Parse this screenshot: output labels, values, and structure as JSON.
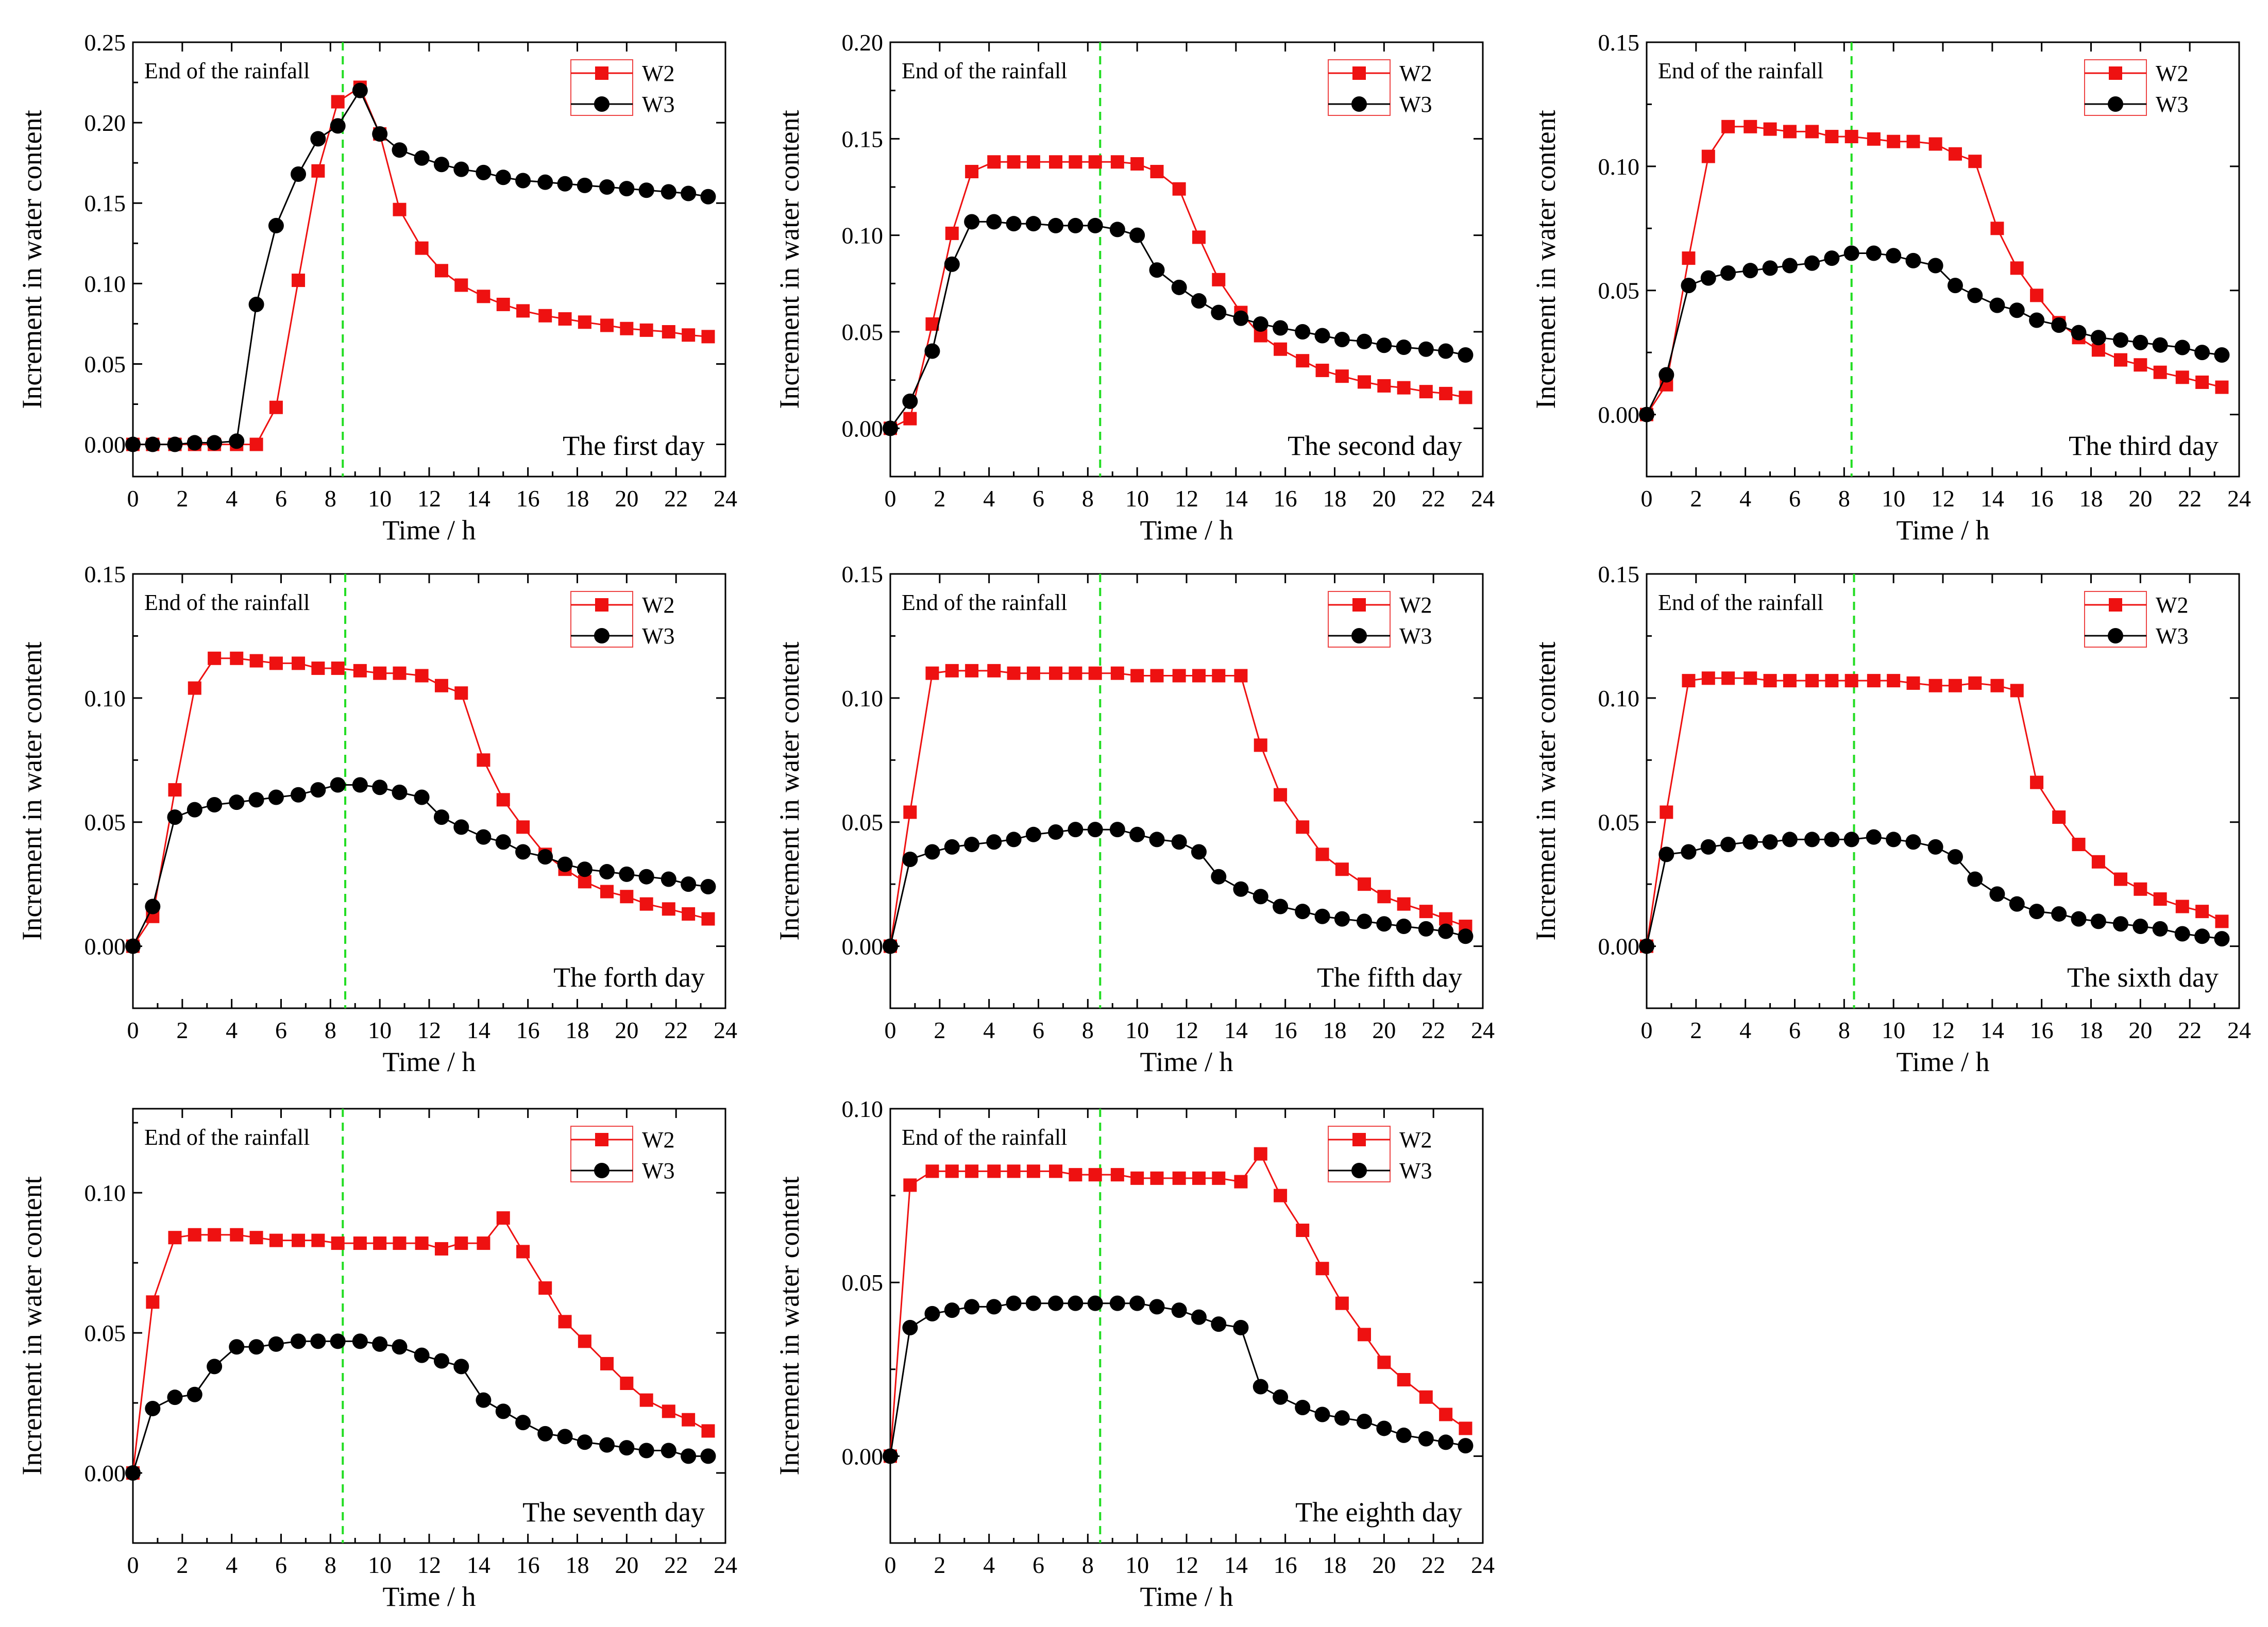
{
  "colors": {
    "W2": "#ee1111",
    "W3": "#000000",
    "rainfall_line": "#22dd22"
  },
  "chart_data": [
    {
      "type": "line",
      "panel_label": "The first day",
      "annotation": "End of the rainfall",
      "rainfall_end_x": 8.5,
      "xlabel": "Time / h",
      "ylabel": "Increment in water content",
      "xlim": [
        0,
        24
      ],
      "ylim": [
        -0.02,
        0.25
      ],
      "xticks": [
        "0",
        "2",
        "4",
        "6",
        "8",
        "10",
        "12",
        "14",
        "16",
        "18",
        "20",
        "22",
        "24"
      ],
      "yticks": [
        "0.00",
        "0.05",
        "0.10",
        "0.15",
        "0.20",
        "0.25"
      ],
      "legend": "top-right",
      "x": [
        0,
        0.8,
        1.7,
        2.5,
        3.3,
        4.2,
        5.0,
        5.8,
        6.7,
        7.5,
        8.3,
        9.2,
        10.0,
        10.8,
        11.7,
        12.5,
        13.3,
        14.2,
        15.0,
        15.8,
        16.7,
        17.5,
        18.3,
        19.2,
        20.0,
        20.8,
        21.7,
        22.5,
        23.3
      ],
      "series": [
        {
          "name": "W2",
          "values": [
            0.0,
            0.0,
            0.0,
            0.0,
            0.0,
            0.0,
            0.0,
            0.023,
            0.102,
            0.17,
            0.213,
            0.222,
            0.193,
            0.146,
            0.122,
            0.108,
            0.099,
            0.092,
            0.087,
            0.083,
            0.08,
            0.078,
            0.076,
            0.074,
            0.072,
            0.071,
            0.07,
            0.068,
            0.067
          ]
        },
        {
          "name": "W3",
          "values": [
            0.0,
            0.0,
            0.0,
            0.001,
            0.001,
            0.002,
            0.087,
            0.136,
            0.168,
            0.19,
            0.198,
            0.22,
            0.193,
            0.183,
            0.178,
            0.174,
            0.171,
            0.169,
            0.166,
            0.164,
            0.163,
            0.162,
            0.161,
            0.16,
            0.159,
            0.158,
            0.157,
            0.156,
            0.154
          ]
        }
      ]
    },
    {
      "type": "line",
      "panel_label": "The second day",
      "annotation": "End of the rainfall",
      "rainfall_end_x": 8.5,
      "xlabel": "Time / h",
      "ylabel": "Increment in water content",
      "xlim": [
        0,
        24
      ],
      "ylim": [
        -0.025,
        0.2
      ],
      "xticks": [
        "0",
        "2",
        "4",
        "6",
        "8",
        "10",
        "12",
        "14",
        "16",
        "18",
        "20",
        "22",
        "24"
      ],
      "yticks": [
        "0.00",
        "0.05",
        "0.10",
        "0.15",
        "0.20"
      ],
      "legend": "top-right",
      "x": [
        0,
        0.8,
        1.7,
        2.5,
        3.3,
        4.2,
        5.0,
        5.8,
        6.7,
        7.5,
        8.3,
        9.2,
        10.0,
        10.8,
        11.7,
        12.5,
        13.3,
        14.2,
        15.0,
        15.8,
        16.7,
        17.5,
        18.3,
        19.2,
        20.0,
        20.8,
        21.7,
        22.5,
        23.3
      ],
      "series": [
        {
          "name": "W2",
          "values": [
            0.0,
            0.005,
            0.054,
            0.101,
            0.133,
            0.138,
            0.138,
            0.138,
            0.138,
            0.138,
            0.138,
            0.138,
            0.137,
            0.133,
            0.124,
            0.099,
            0.077,
            0.06,
            0.048,
            0.041,
            0.035,
            0.03,
            0.027,
            0.024,
            0.022,
            0.021,
            0.019,
            0.018,
            0.016
          ]
        },
        {
          "name": "W3",
          "values": [
            0.0,
            0.014,
            0.04,
            0.085,
            0.107,
            0.107,
            0.106,
            0.106,
            0.105,
            0.105,
            0.105,
            0.103,
            0.1,
            0.082,
            0.073,
            0.066,
            0.06,
            0.057,
            0.054,
            0.052,
            0.05,
            0.048,
            0.046,
            0.045,
            0.043,
            0.042,
            0.041,
            0.04,
            0.038
          ]
        }
      ]
    },
    {
      "type": "line",
      "panel_label": "The third day",
      "annotation": "End of the rainfall",
      "rainfall_end_x": 8.3,
      "xlabel": "Time / h",
      "ylabel": "Increment in water content",
      "xlim": [
        0,
        24
      ],
      "ylim": [
        -0.025,
        0.15
      ],
      "xticks": [
        "0",
        "2",
        "4",
        "6",
        "8",
        "10",
        "12",
        "14",
        "16",
        "18",
        "20",
        "22",
        "24"
      ],
      "yticks": [
        "0.00",
        "0.05",
        "0.10",
        "0.15"
      ],
      "legend": "top-right",
      "x": [
        0,
        0.8,
        1.7,
        2.5,
        3.3,
        4.2,
        5.0,
        5.8,
        6.7,
        7.5,
        8.3,
        9.2,
        10.0,
        10.8,
        11.7,
        12.5,
        13.3,
        14.2,
        15.0,
        15.8,
        16.7,
        17.5,
        18.3,
        19.2,
        20.0,
        20.8,
        21.7,
        22.5,
        23.3
      ],
      "series": [
        {
          "name": "W2",
          "values": [
            0.0,
            0.012,
            0.063,
            0.104,
            0.116,
            0.116,
            0.115,
            0.114,
            0.114,
            0.112,
            0.112,
            0.111,
            0.11,
            0.11,
            0.109,
            0.105,
            0.102,
            0.075,
            0.059,
            0.048,
            0.037,
            0.031,
            0.026,
            0.022,
            0.02,
            0.017,
            0.015,
            0.013,
            0.011
          ]
        },
        {
          "name": "W3",
          "values": [
            0.0,
            0.016,
            0.052,
            0.055,
            0.057,
            0.058,
            0.059,
            0.06,
            0.061,
            0.063,
            0.065,
            0.065,
            0.064,
            0.062,
            0.06,
            0.052,
            0.048,
            0.044,
            0.042,
            0.038,
            0.036,
            0.033,
            0.031,
            0.03,
            0.029,
            0.028,
            0.027,
            0.025,
            0.024
          ]
        }
      ]
    },
    {
      "type": "line",
      "panel_label": "The forth day",
      "annotation": "End of the rainfall",
      "rainfall_end_x": 8.6,
      "xlabel": "Time / h",
      "ylabel": "Increment in water content",
      "xlim": [
        0,
        24
      ],
      "ylim": [
        -0.025,
        0.15
      ],
      "xticks": [
        "0",
        "2",
        "4",
        "6",
        "8",
        "10",
        "12",
        "14",
        "16",
        "18",
        "20",
        "22",
        "24"
      ],
      "yticks": [
        "0.00",
        "0.05",
        "0.10",
        "0.15"
      ],
      "legend": "top-right",
      "x": [
        0,
        0.8,
        1.7,
        2.5,
        3.3,
        4.2,
        5.0,
        5.8,
        6.7,
        7.5,
        8.3,
        9.2,
        10.0,
        10.8,
        11.7,
        12.5,
        13.3,
        14.2,
        15.0,
        15.8,
        16.7,
        17.5,
        18.3,
        19.2,
        20.0,
        20.8,
        21.7,
        22.5,
        23.3
      ],
      "series": [
        {
          "name": "W2",
          "values": [
            0.0,
            0.012,
            0.063,
            0.104,
            0.116,
            0.116,
            0.115,
            0.114,
            0.114,
            0.112,
            0.112,
            0.111,
            0.11,
            0.11,
            0.109,
            0.105,
            0.102,
            0.075,
            0.059,
            0.048,
            0.037,
            0.031,
            0.026,
            0.022,
            0.02,
            0.017,
            0.015,
            0.013,
            0.011
          ]
        },
        {
          "name": "W3",
          "values": [
            0.0,
            0.016,
            0.052,
            0.055,
            0.057,
            0.058,
            0.059,
            0.06,
            0.061,
            0.063,
            0.065,
            0.065,
            0.064,
            0.062,
            0.06,
            0.052,
            0.048,
            0.044,
            0.042,
            0.038,
            0.036,
            0.033,
            0.031,
            0.03,
            0.029,
            0.028,
            0.027,
            0.025,
            0.024
          ]
        }
      ]
    },
    {
      "type": "line",
      "panel_label": "The fifth day",
      "annotation": "End of the rainfall",
      "rainfall_end_x": 8.5,
      "xlabel": "Time / h",
      "ylabel": "Increment in water content",
      "xlim": [
        0,
        24
      ],
      "ylim": [
        -0.025,
        0.15
      ],
      "xticks": [
        "0",
        "2",
        "4",
        "6",
        "8",
        "10",
        "12",
        "14",
        "16",
        "18",
        "20",
        "22",
        "24"
      ],
      "yticks": [
        "0.00",
        "0.05",
        "0.10",
        "0.15"
      ],
      "legend": "top-right",
      "x": [
        0,
        0.8,
        1.7,
        2.5,
        3.3,
        4.2,
        5.0,
        5.8,
        6.7,
        7.5,
        8.3,
        9.2,
        10.0,
        10.8,
        11.7,
        12.5,
        13.3,
        14.2,
        15.0,
        15.8,
        16.7,
        17.5,
        18.3,
        19.2,
        20.0,
        20.8,
        21.7,
        22.5,
        23.3
      ],
      "series": [
        {
          "name": "W2",
          "values": [
            0.0,
            0.054,
            0.11,
            0.111,
            0.111,
            0.111,
            0.11,
            0.11,
            0.11,
            0.11,
            0.11,
            0.11,
            0.109,
            0.109,
            0.109,
            0.109,
            0.109,
            0.109,
            0.081,
            0.061,
            0.048,
            0.037,
            0.031,
            0.025,
            0.02,
            0.017,
            0.014,
            0.011,
            0.008
          ]
        },
        {
          "name": "W3",
          "values": [
            0.0,
            0.035,
            0.038,
            0.04,
            0.041,
            0.042,
            0.043,
            0.045,
            0.046,
            0.047,
            0.047,
            0.047,
            0.045,
            0.043,
            0.042,
            0.038,
            0.028,
            0.023,
            0.02,
            0.016,
            0.014,
            0.012,
            0.011,
            0.01,
            0.009,
            0.008,
            0.007,
            0.006,
            0.004
          ]
        }
      ]
    },
    {
      "type": "line",
      "panel_label": "The sixth day",
      "annotation": "End of the rainfall",
      "rainfall_end_x": 8.4,
      "xlabel": "Time / h",
      "ylabel": "Increment in water content",
      "xlim": [
        0,
        24
      ],
      "ylim": [
        -0.025,
        0.15
      ],
      "xticks": [
        "0",
        "2",
        "4",
        "6",
        "8",
        "10",
        "12",
        "14",
        "16",
        "18",
        "20",
        "22",
        "24"
      ],
      "yticks": [
        "0.00",
        "0.05",
        "0.10",
        "0.15"
      ],
      "legend": "top-right",
      "x": [
        0,
        0.8,
        1.7,
        2.5,
        3.3,
        4.2,
        5.0,
        5.8,
        6.7,
        7.5,
        8.3,
        9.2,
        10.0,
        10.8,
        11.7,
        12.5,
        13.3,
        14.2,
        15.0,
        15.8,
        16.7,
        17.5,
        18.3,
        19.2,
        20.0,
        20.8,
        21.7,
        22.5,
        23.3
      ],
      "series": [
        {
          "name": "W2",
          "values": [
            0.0,
            0.054,
            0.107,
            0.108,
            0.108,
            0.108,
            0.107,
            0.107,
            0.107,
            0.107,
            0.107,
            0.107,
            0.107,
            0.106,
            0.105,
            0.105,
            0.106,
            0.105,
            0.103,
            0.066,
            0.052,
            0.041,
            0.034,
            0.027,
            0.023,
            0.019,
            0.016,
            0.014,
            0.01
          ]
        },
        {
          "name": "W3",
          "values": [
            0.0,
            0.037,
            0.038,
            0.04,
            0.041,
            0.042,
            0.042,
            0.043,
            0.043,
            0.043,
            0.043,
            0.044,
            0.043,
            0.042,
            0.04,
            0.036,
            0.027,
            0.021,
            0.017,
            0.014,
            0.013,
            0.011,
            0.01,
            0.009,
            0.008,
            0.007,
            0.005,
            0.004,
            0.003
          ]
        }
      ]
    },
    {
      "type": "line",
      "panel_label": "The seventh day",
      "annotation": "End of the rainfall",
      "rainfall_end_x": 8.5,
      "xlabel": "Time / h",
      "ylabel": "Increment in water content",
      "xlim": [
        0,
        24
      ],
      "ylim": [
        -0.025,
        0.13
      ],
      "xticks": [
        "0",
        "2",
        "4",
        "6",
        "8",
        "10",
        "12",
        "14",
        "16",
        "18",
        "20",
        "22",
        "24"
      ],
      "yticks": [
        "0.00",
        "0.05",
        "0.10"
      ],
      "legend": "top-right",
      "x": [
        0,
        0.8,
        1.7,
        2.5,
        3.3,
        4.2,
        5.0,
        5.8,
        6.7,
        7.5,
        8.3,
        9.2,
        10.0,
        10.8,
        11.7,
        12.5,
        13.3,
        14.2,
        15.0,
        15.8,
        16.7,
        17.5,
        18.3,
        19.2,
        20.0,
        20.8,
        21.7,
        22.5,
        23.3
      ],
      "series": [
        {
          "name": "W2",
          "values": [
            0.0,
            0.061,
            0.084,
            0.085,
            0.085,
            0.085,
            0.084,
            0.083,
            0.083,
            0.083,
            0.082,
            0.082,
            0.082,
            0.082,
            0.082,
            0.08,
            0.082,
            0.082,
            0.091,
            0.079,
            0.066,
            0.054,
            0.047,
            0.039,
            0.032,
            0.026,
            0.022,
            0.019,
            0.015
          ]
        },
        {
          "name": "W3",
          "values": [
            0.0,
            0.023,
            0.027,
            0.028,
            0.038,
            0.045,
            0.045,
            0.046,
            0.047,
            0.047,
            0.047,
            0.047,
            0.046,
            0.045,
            0.042,
            0.04,
            0.038,
            0.026,
            0.022,
            0.018,
            0.014,
            0.013,
            0.011,
            0.01,
            0.009,
            0.008,
            0.008,
            0.006,
            0.006
          ]
        }
      ]
    },
    {
      "type": "line",
      "panel_label": "The eighth day",
      "annotation": "End of the rainfall",
      "rainfall_end_x": 8.5,
      "xlabel": "Time / h",
      "ylabel": "Increment in water content",
      "xlim": [
        0,
        24
      ],
      "ylim": [
        -0.025,
        0.1
      ],
      "xticks": [
        "0",
        "2",
        "4",
        "6",
        "8",
        "10",
        "12",
        "14",
        "16",
        "18",
        "20",
        "22",
        "24"
      ],
      "yticks": [
        "0.00",
        "0.05",
        "0.10"
      ],
      "legend": "top-right",
      "x": [
        0,
        0.8,
        1.7,
        2.5,
        3.3,
        4.2,
        5.0,
        5.8,
        6.7,
        7.5,
        8.3,
        9.2,
        10.0,
        10.8,
        11.7,
        12.5,
        13.3,
        14.2,
        15.0,
        15.8,
        16.7,
        17.5,
        18.3,
        19.2,
        20.0,
        20.8,
        21.7,
        22.5,
        23.3
      ],
      "series": [
        {
          "name": "W2",
          "values": [
            0.0,
            0.078,
            0.082,
            0.082,
            0.082,
            0.082,
            0.082,
            0.082,
            0.082,
            0.081,
            0.081,
            0.081,
            0.08,
            0.08,
            0.08,
            0.08,
            0.08,
            0.079,
            0.087,
            0.075,
            0.065,
            0.054,
            0.044,
            0.035,
            0.027,
            0.022,
            0.017,
            0.012,
            0.008
          ]
        },
        {
          "name": "W3",
          "values": [
            0.0,
            0.037,
            0.041,
            0.042,
            0.043,
            0.043,
            0.044,
            0.044,
            0.044,
            0.044,
            0.044,
            0.044,
            0.044,
            0.043,
            0.042,
            0.04,
            0.038,
            0.037,
            0.02,
            0.017,
            0.014,
            0.012,
            0.011,
            0.01,
            0.008,
            0.006,
            0.005,
            0.004,
            0.003
          ]
        }
      ]
    }
  ]
}
